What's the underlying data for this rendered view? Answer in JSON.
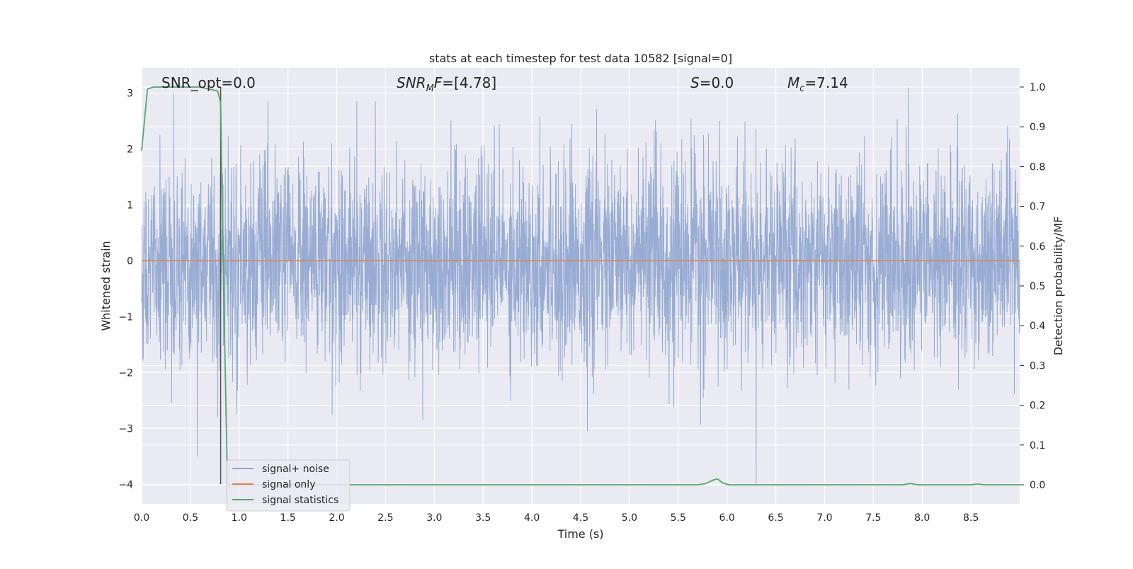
{
  "chart_data": {
    "type": "line",
    "title": "stats at each timestep for test data 10582 [signal=0]",
    "xlabel": "Time (s)",
    "ylabel_left": "Whitened strain",
    "ylabel_right": "Detection probability/MF",
    "xlim": [
      0.0,
      9.0
    ],
    "ylim_left": [
      -4.35,
      3.45
    ],
    "ylim_right": [
      -0.048,
      1.048
    ],
    "grid": true,
    "legend_placement": "lower-left",
    "x_ticks": [
      "0.0",
      "0.5",
      "1.0",
      "1.5",
      "2.0",
      "2.5",
      "3.0",
      "3.5",
      "4.0",
      "4.5",
      "5.0",
      "5.5",
      "6.0",
      "6.5",
      "7.0",
      "7.5",
      "8.0",
      "8.5"
    ],
    "x_tick_values": [
      0.0,
      0.5,
      1.0,
      1.5,
      2.0,
      2.5,
      3.0,
      3.5,
      4.0,
      4.5,
      5.0,
      5.5,
      6.0,
      6.5,
      7.0,
      7.5,
      8.0,
      8.5
    ],
    "y_left_ticks": [
      "3",
      "2",
      "1",
      "0",
      "−1",
      "−2",
      "−3",
      "−4"
    ],
    "y_left_tick_values": [
      3,
      2,
      1,
      0,
      -1,
      -2,
      -3,
      -4
    ],
    "y_right_ticks": [
      "1.0",
      "0.9",
      "0.8",
      "0.7",
      "0.6",
      "0.5",
      "0.4",
      "0.3",
      "0.2",
      "0.1",
      "0.0"
    ],
    "y_right_tick_values": [
      1.0,
      0.9,
      0.8,
      0.7,
      0.6,
      0.5,
      0.4,
      0.3,
      0.2,
      0.1,
      0.0
    ],
    "annotations": {
      "snr_opt": "SNR_opt=0.0",
      "snr_mf": "=[4.78]",
      "s_value": "=0.0",
      "mc_value": "=7.14"
    },
    "marker_time": 0.81,
    "series": [
      {
        "name": "signal+ noise",
        "color": "#8fa5cf",
        "axis": "left",
        "noise_std": 0.9,
        "noise_peaks": [
          {
            "x": 0.57,
            "y": -3.5
          },
          {
            "x": 0.78,
            "y": -2.8
          },
          {
            "x": 0.33,
            "y": 3.0
          },
          {
            "x": 4.57,
            "y": -3.05
          },
          {
            "x": 5.73,
            "y": -2.93
          },
          {
            "x": 6.3,
            "y": -4.0
          },
          {
            "x": 7.86,
            "y": 3.1
          },
          {
            "x": 2.88,
            "y": -2.85
          }
        ]
      },
      {
        "name": "signal only",
        "color": "#dd8452",
        "axis": "left",
        "x": [
          0.0,
          9.0
        ],
        "y": [
          0.0,
          0.0
        ]
      },
      {
        "name": "signal statistics",
        "color": "#55a868",
        "axis": "right",
        "x": [
          0.0,
          0.06,
          0.12,
          0.2,
          0.6,
          0.78,
          0.81,
          0.84,
          0.88,
          1.0,
          5.7,
          5.78,
          5.86,
          5.9,
          5.96,
          6.02,
          7.8,
          7.88,
          7.96,
          8.5,
          8.57,
          8.64,
          9.0
        ],
        "y": [
          0.84,
          0.995,
          1.0,
          1.0,
          1.0,
          0.99,
          0.96,
          0.5,
          0.0,
          0.0,
          0.0,
          0.003,
          0.012,
          0.015,
          0.004,
          0.0,
          0.0,
          0.003,
          0.0,
          0.0,
          0.002,
          0.0,
          0.0
        ]
      }
    ]
  }
}
